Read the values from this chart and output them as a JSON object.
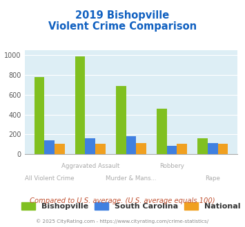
{
  "title_line1": "2019 Bishopville",
  "title_line2": "Violent Crime Comparison",
  "categories": [
    "All Violent Crime",
    "Aggravated Assault",
    "Murder & Mans...",
    "Robbery",
    "Rape"
  ],
  "x_labels_top": [
    "",
    "Aggravated Assault",
    "",
    "Robbery",
    ""
  ],
  "x_labels_bottom": [
    "All Violent Crime",
    "",
    "Murder & Mans...",
    "",
    "Rape"
  ],
  "bishopville": [
    775,
    985,
    690,
    460,
    160
  ],
  "south_carolina": [
    140,
    160,
    185,
    85,
    115
  ],
  "national": [
    105,
    105,
    110,
    105,
    105
  ],
  "bar_colors": {
    "bishopville": "#80c020",
    "south_carolina": "#4080e0",
    "national": "#f0a020"
  },
  "ylim": [
    0,
    1050
  ],
  "yticks": [
    0,
    200,
    400,
    600,
    800,
    1000
  ],
  "plot_bg": "#ddeef5",
  "grid_color": "#ffffff",
  "title_color": "#1060c0",
  "footer_text": "Compared to U.S. average. (U.S. average equals 100)",
  "copyright_text": "© 2025 CityRating.com - https://www.cityrating.com/crime-statistics/",
  "legend_labels": [
    "Bishopville",
    "South Carolina",
    "National"
  ],
  "footer_color": "#c05030",
  "copyright_color": "#888888"
}
